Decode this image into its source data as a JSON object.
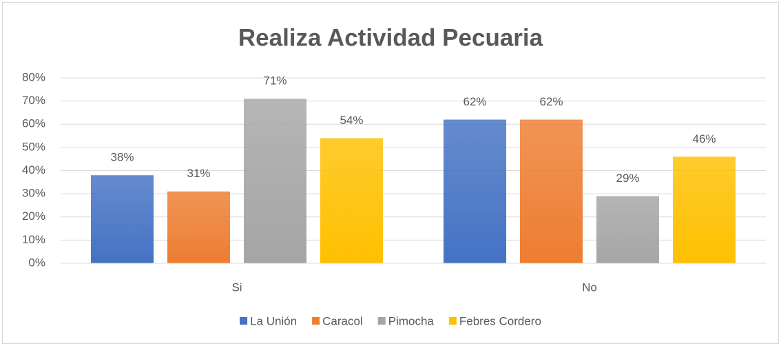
{
  "chart_data": {
    "type": "bar",
    "title": "Realiza Actividad Pecuaria",
    "categories": [
      "Si",
      "No"
    ],
    "series": [
      {
        "name": "La Unión",
        "color": "#4472c4",
        "values": [
          38,
          62
        ],
        "value_labels": [
          "38%",
          "62%"
        ]
      },
      {
        "name": "Caracol",
        "color": "#ed7d31",
        "values": [
          31,
          62
        ],
        "value_labels": [
          "31%",
          "62%"
        ]
      },
      {
        "name": "Pimocha",
        "color": "#a5a5a5",
        "values": [
          71,
          29
        ],
        "value_labels": [
          "71%",
          "29%"
        ]
      },
      {
        "name": "Febres Cordero",
        "color": "#ffc000",
        "values": [
          54,
          46
        ],
        "value_labels": [
          "54%",
          "46%"
        ]
      }
    ],
    "ylim": [
      0,
      80
    ],
    "yticks": [
      {
        "value": 0,
        "label": "0%"
      },
      {
        "value": 10,
        "label": "10%"
      },
      {
        "value": 20,
        "label": "20%"
      },
      {
        "value": 30,
        "label": "30%"
      },
      {
        "value": 40,
        "label": "40%"
      },
      {
        "value": 50,
        "label": "50%"
      },
      {
        "value": 60,
        "label": "60%"
      },
      {
        "value": 70,
        "label": "70%"
      },
      {
        "value": 80,
        "label": "80%"
      }
    ],
    "grid": true,
    "legend": "bottom"
  }
}
